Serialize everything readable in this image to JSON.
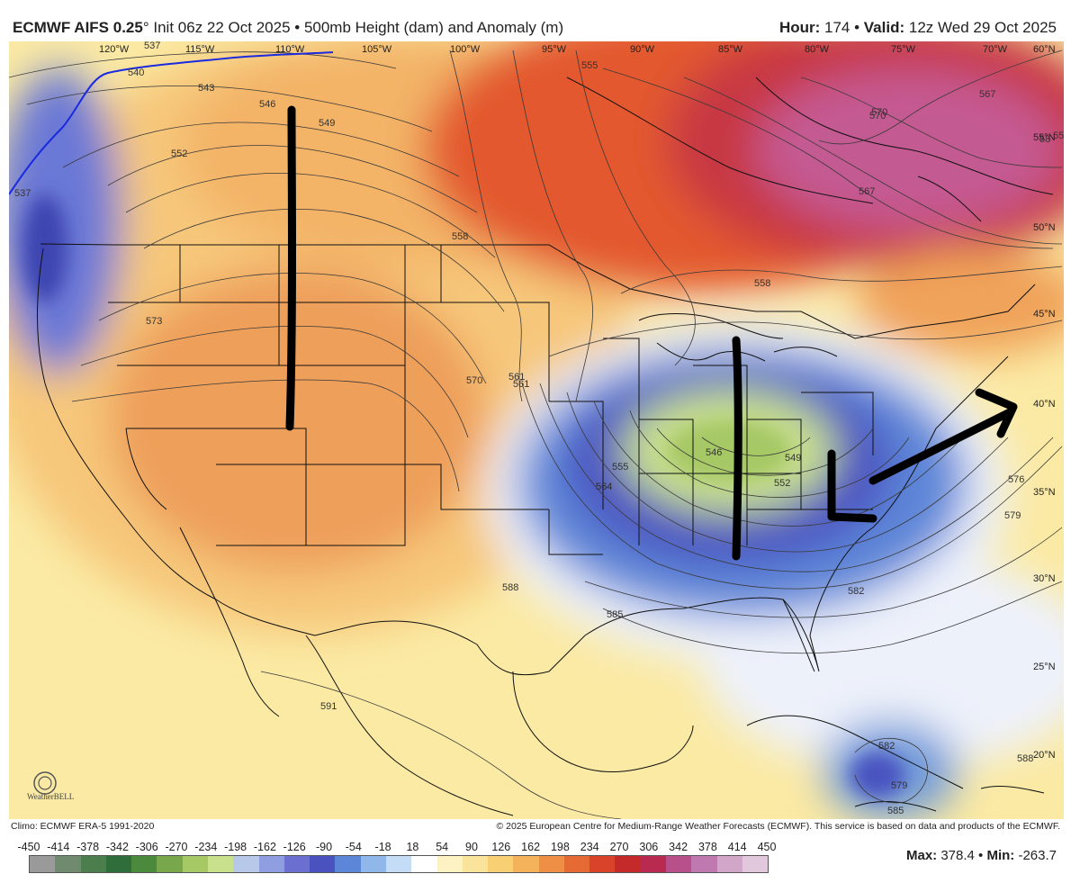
{
  "header": {
    "model": "ECMWF AIFS 0.25",
    "degree": "°",
    "init": " Init 06z 22 Oct 2025 ",
    "bullet": "•",
    "product": " 500mb Height (dam) and Anomaly (m)",
    "hour_label": "Hour:",
    "hour_value": " 174 • ",
    "valid_label": "Valid:",
    "valid_value": " 12z Wed 29 Oct 2025"
  },
  "map": {
    "longitude_labels": [
      "120°W",
      "115°W",
      "110°W",
      "105°W",
      "100°W",
      "95°W",
      "90°W",
      "85°W",
      "80°W",
      "75°W",
      "70°W",
      "60°N"
    ],
    "latitude_labels": [
      "55°N",
      "50°N",
      "45°N",
      "40°N",
      "35°N",
      "30°N",
      "25°N",
      "20°N"
    ],
    "contour_labels": [
      "537",
      "540",
      "543",
      "546",
      "549",
      "552",
      "555",
      "558",
      "561",
      "564",
      "567",
      "570",
      "573",
      "576",
      "579",
      "582",
      "585",
      "588",
      "591"
    ],
    "trough_contour_labels": [
      "546",
      "549",
      "552",
      "555",
      "561",
      "564",
      "570"
    ],
    "hurricane_labels": [
      "582",
      "579",
      "585"
    ],
    "extra_labels": [
      "558",
      "567",
      "570",
      "537",
      "588",
      "55",
      "58"
    ],
    "annotations": {
      "west_line": "black vertical line over the western ridge",
      "east_line": "black vertical line through the eastern trough",
      "arrow": "L-shaped mark with arrow pointing northeast"
    }
  },
  "footer": {
    "climo": "Climo: ECMWF ERA-5 1991-2020",
    "copyright": "© 2025 European Centre for Medium-Range Weather Forecasts (ECMWF). This service is based on data and products of the ECMWF.",
    "legend_ticks": [
      "-450",
      "-414",
      "-378",
      "-342",
      "-306",
      "-270",
      "-234",
      "-198",
      "-162",
      "-126",
      "-90",
      "-54",
      "-18",
      "18",
      "54",
      "90",
      "126",
      "162",
      "198",
      "234",
      "270",
      "306",
      "342",
      "378",
      "414",
      "450"
    ],
    "legend_colors": [
      "#9a9a9a",
      "#6f8a6f",
      "#4c7d4c",
      "#2f6e3a",
      "#4b8a3c",
      "#79a84c",
      "#a6c865",
      "#c9e08d",
      "#b8c8e8",
      "#8e9ee0",
      "#6a6fd0",
      "#4a52c0",
      "#5c86d8",
      "#8fb7ea",
      "#c4dcf5",
      "#ffffff",
      "#fdf2c4",
      "#fae39a",
      "#f8cf72",
      "#f4b35a",
      "#ee8f45",
      "#e66a34",
      "#d8432a",
      "#c52a2a",
      "#b82a50",
      "#b8508c",
      "#c079b0",
      "#d2a6c8",
      "#e2c8dc"
    ],
    "max_label": "Max:",
    "max_value": " 378.4 • ",
    "min_label": "Min:",
    "min_value": " -263.7"
  },
  "logo": {
    "text": "WeatherBELL"
  }
}
